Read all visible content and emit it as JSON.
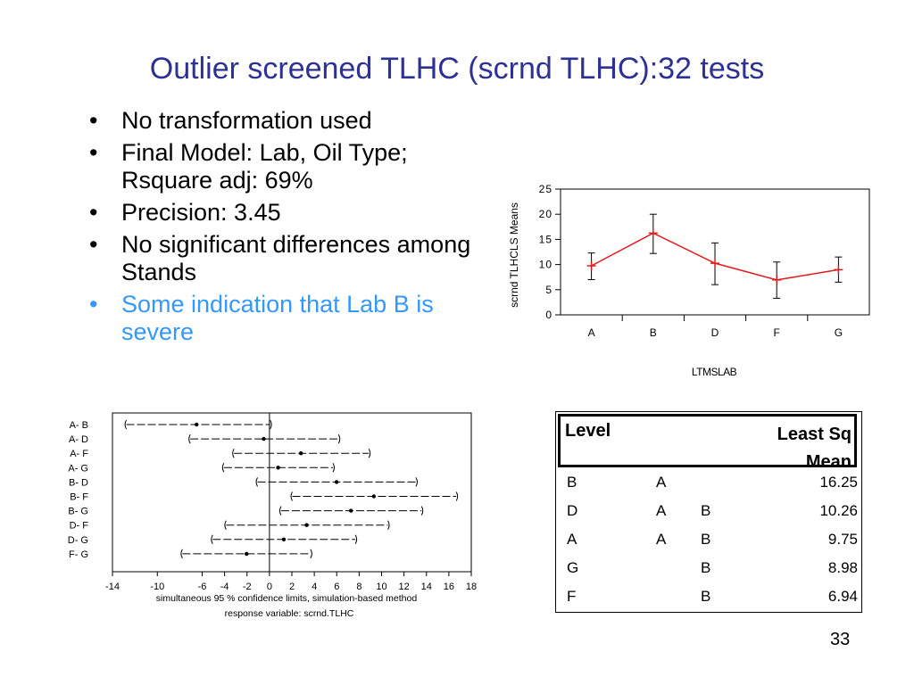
{
  "slide": {
    "title": "Outlier screened TLHC (scrnd TLHC):32 tests",
    "page_number": "33",
    "bullet_glyph": "•",
    "bullets": [
      "No transformation used",
      "Final Model: Lab, Oil Type; Rsquare adj: 69%",
      "Precision: 3.45",
      "No significant differences among Stands",
      "Some indication that Lab B is severe"
    ],
    "highlight_color": "#3399ff",
    "title_color": "#2e3192"
  },
  "chart_data": [
    {
      "type": "line",
      "xlabel": "LTMSLAB",
      "ylabel": "scrnd TLHCLS Means",
      "categories": [
        "A",
        "B",
        "D",
        "F",
        "G"
      ],
      "values": [
        9.75,
        16.25,
        10.26,
        6.94,
        8.98
      ],
      "error_low": [
        7.0,
        12.2,
        6.0,
        3.3,
        6.5
      ],
      "error_high": [
        12.3,
        20.0,
        14.3,
        10.5,
        11.5
      ],
      "ylim": [
        0,
        25
      ],
      "yticks": [
        "0",
        "5",
        "10",
        "15",
        "20",
        "25"
      ],
      "line_color": "#e31a1c"
    },
    {
      "type": "interval",
      "labels": [
        "A- B",
        "A- D",
        "A- F",
        "A- G",
        "B- D",
        "B- F",
        "B- G",
        "D- F",
        "D- G",
        "F- G"
      ],
      "estimates": [
        -6.5,
        -0.51,
        2.81,
        0.77,
        5.99,
        9.31,
        7.27,
        3.32,
        1.28,
        -2.04
      ],
      "lower": [
        -13.0,
        -7.3,
        -3.4,
        -4.3,
        -1.3,
        1.8,
        0.8,
        -4.1,
        -5.3,
        -8.0
      ],
      "upper": [
        0.3,
        6.4,
        9.1,
        5.9,
        13.3,
        16.9,
        13.8,
        10.8,
        7.9,
        3.9
      ],
      "xlim": [
        -14,
        18
      ],
      "xticks": [
        "-14",
        "-10",
        "-6",
        "-4",
        "-2",
        "0",
        "2",
        "4",
        "6",
        "8",
        "10",
        "12",
        "14",
        "16",
        "18"
      ],
      "footnote1": "simultaneous  95 % confidence limits, simulation-based method",
      "footnote2": "response variable: scrnd.TLHC"
    }
  ],
  "lsmeans_table": {
    "header_level": "Level",
    "header_mean": "Least Sq\nMean",
    "rows": [
      {
        "level": "B",
        "g1": "A",
        "g2": "",
        "mean": "16.25"
      },
      {
        "level": "D",
        "g1": "A",
        "g2": "B",
        "mean": "10.26"
      },
      {
        "level": "A",
        "g1": "A",
        "g2": "B",
        "mean": "9.75"
      },
      {
        "level": "G",
        "g1": "",
        "g2": "B",
        "mean": "8.98"
      },
      {
        "level": "F",
        "g1": "",
        "g2": "B",
        "mean": "6.94"
      }
    ]
  }
}
